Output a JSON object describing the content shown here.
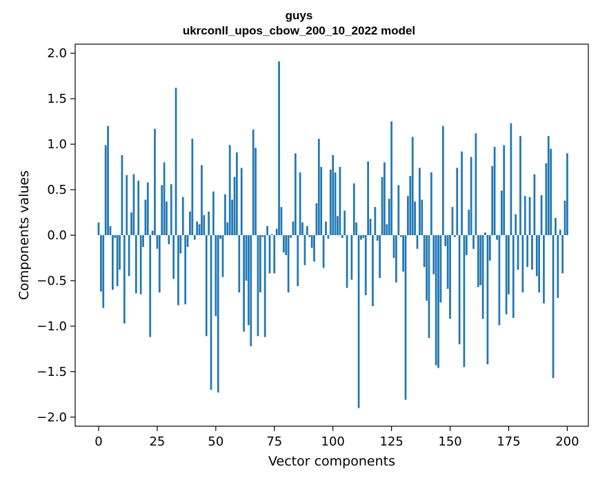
{
  "chart_data": {
    "type": "bar",
    "title": "guys",
    "subtitle": "ukrconll_upos_cbow_200_10_2022 model",
    "xlabel": "Vector components",
    "ylabel": "Components values",
    "xlim": [
      -10,
      209
    ],
    "ylim": [
      -2.1,
      2.1
    ],
    "xticks": [
      0,
      25,
      50,
      75,
      100,
      125,
      150,
      175,
      200
    ],
    "xtick_labels": [
      "0",
      "25",
      "50",
      "75",
      "100",
      "125",
      "150",
      "175",
      "200"
    ],
    "yticks": [
      -2.0,
      -1.5,
      -1.0,
      -0.5,
      0.0,
      0.5,
      1.0,
      1.5,
      2.0
    ],
    "ytick_labels": [
      "−2.0",
      "−1.5",
      "−1.0",
      "−0.5",
      "0.0",
      "0.5",
      "1.0",
      "1.5",
      "2.0"
    ],
    "bar_color": "#1f77b4",
    "grid": false,
    "values": [
      0.14,
      -0.62,
      -0.8,
      0.99,
      1.2,
      0.1,
      -0.6,
      -0.03,
      -0.56,
      -0.38,
      0.88,
      -0.97,
      0.66,
      -0.45,
      0.25,
      0.67,
      -0.64,
      0.6,
      -0.65,
      -0.13,
      0.39,
      0.58,
      -1.12,
      0.05,
      1.17,
      -0.15,
      -0.63,
      0.55,
      0.8,
      0.37,
      -0.1,
      0.56,
      -0.48,
      1.62,
      -0.77,
      -0.2,
      0.42,
      -0.76,
      -0.13,
      0.26,
      1.06,
      -0.05,
      0.15,
      0.12,
      0.77,
      0.22,
      -1.11,
      0.26,
      -1.7,
      0.48,
      -0.89,
      -1.73,
      -0.04,
      -0.46,
      0.45,
      0.14,
      0.99,
      0.39,
      0.64,
      0.91,
      -0.63,
      0.74,
      -1.06,
      -0.5,
      -0.99,
      -1.22,
      1.16,
      0.96,
      -1.11,
      -0.63,
      -0.02,
      -1.12,
      0.1,
      -0.42,
      0.01,
      -0.42,
      0.07,
      1.91,
      0.31,
      -0.19,
      -0.22,
      -0.63,
      -0.03,
      0.15,
      0.9,
      -0.56,
      0.69,
      0.14,
      -0.33,
      0.1,
      -0.02,
      -0.14,
      -0.29,
      0.35,
      1.06,
      0.75,
      -0.36,
      0.15,
      -0.04,
      0.72,
      0.88,
      0.69,
      0.21,
      0.75,
      -0.03,
      0.27,
      -0.58,
      0.0,
      -0.49,
      0.57,
      0.14,
      -1.9,
      -0.05,
      -0.03,
      -0.66,
      0.81,
      0.18,
      -0.78,
      0.31,
      -0.06,
      -0.47,
      0.64,
      0.8,
      0.12,
      0.4,
      1.25,
      -0.25,
      -0.52,
      0.55,
      -0.02,
      -0.4,
      -1.81,
      0.43,
      0.65,
      1.08,
      0.37,
      -0.15,
      0.74,
      0.39,
      -0.35,
      -0.72,
      -1.13,
      0.69,
      -0.43,
      -1.43,
      -1.46,
      -0.74,
      1.2,
      -0.12,
      -0.59,
      -0.92,
      0.31,
      -0.02,
      0.74,
      -1.2,
      0.92,
      -1.45,
      -0.22,
      0.28,
      0.86,
      -0.15,
      1.12,
      -0.57,
      -0.55,
      -0.92,
      0.03,
      -1.42,
      -0.28,
      0.76,
      0.97,
      -0.05,
      -0.99,
      0.49,
      0.99,
      -0.87,
      -0.65,
      1.23,
      -0.91,
      0.23,
      -0.38,
      1.09,
      -0.63,
      0.43,
      -0.35,
      0.42,
      -0.38,
      0.67,
      -0.45,
      -0.63,
      0.44,
      -0.75,
      0.79,
      1.09,
      0.95,
      -1.57,
      0.19,
      -0.69,
      0.06,
      -0.42,
      0.38,
      0.9
    ]
  }
}
